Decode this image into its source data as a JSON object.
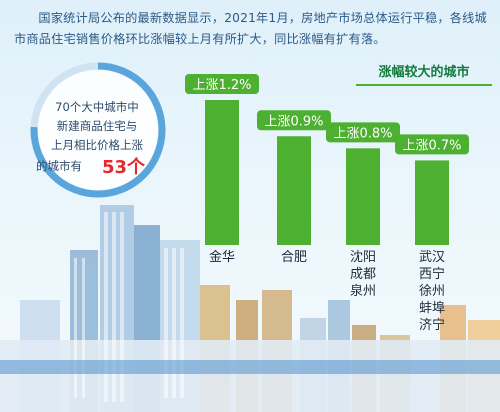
{
  "intro": "国家统计局公布的最新数据显示，2021年1月，房地产市场总体运行平稳，各线城市商品住宅销售价格环比涨幅较上月有所扩大，同比涨幅有扩有落。",
  "circle": {
    "line1": "70个大中城市中",
    "line2": "新建商品住宅与",
    "line3": "上月相比价格上涨",
    "line4": "的城市有",
    "number": "53个",
    "count": 53,
    "total": 70
  },
  "section_title": "涨幅较大的城市",
  "colors": {
    "bar": "#4db030",
    "label_bg": "#4db030",
    "label_text": "#ffffff",
    "city_text": "#1b2a3a",
    "highlight": "#e6282a",
    "ring": "#5aa6dc"
  },
  "chart_data": {
    "type": "bar",
    "title": "",
    "xlabel": "",
    "ylabel": "",
    "unit": "%",
    "categories": [
      "金华",
      "合肥",
      "沈阳 成都 泉州",
      "武汉 西宁 徐州 蚌埠 济宁"
    ],
    "values": [
      1.2,
      0.9,
      0.8,
      0.7
    ],
    "bar_labels": [
      "上涨1.2%",
      "上涨0.9%",
      "上涨0.8%",
      "上涨0.7%"
    ],
    "city_groups": [
      [
        "金华"
      ],
      [
        "合肥"
      ],
      [
        "沈阳",
        "成都",
        "泉州"
      ],
      [
        "武汉",
        "西宁",
        "徐州",
        "蚌埠",
        "济宁"
      ]
    ],
    "ylim": [
      0,
      1.2
    ],
    "grid": false,
    "legend": "none"
  }
}
